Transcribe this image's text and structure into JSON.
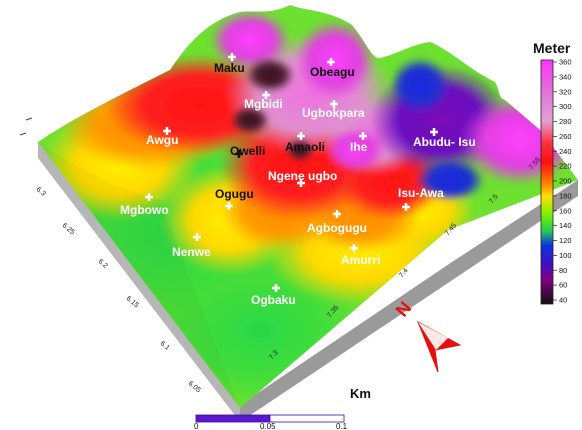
{
  "legend": {
    "title": "Meter",
    "ticks": [
      "360",
      "340",
      "320",
      "300",
      "280",
      "260",
      "240",
      "220",
      "200",
      "180",
      "160",
      "140",
      "120",
      "100",
      "80",
      "60",
      "40"
    ],
    "colors": [
      "#ff30ff",
      "#f050e8",
      "#e070d8",
      "#e2a0d4",
      "#e07090",
      "#ff3040",
      "#ff1010",
      "#ff6a00",
      "#ff9a00",
      "#ffe000",
      "#b0f000",
      "#30e040",
      "#1030e0",
      "#4010c0",
      "#800080",
      "#400040",
      "#101010"
    ]
  },
  "towns": [
    {
      "name": "Maku",
      "color": "black"
    },
    {
      "name": "Obeagu",
      "color": "black"
    },
    {
      "name": "Mgbidi",
      "color": "white"
    },
    {
      "name": "Ugbokpara",
      "color": "white"
    },
    {
      "name": "Awgu",
      "color": "white"
    },
    {
      "name": "Owelli",
      "color": "black"
    },
    {
      "name": "Amaoli",
      "color": "black"
    },
    {
      "name": "Ihe",
      "color": "white"
    },
    {
      "name": "Abudu- Isu",
      "color": "white"
    },
    {
      "name": "Ngene ugbo",
      "color": "white"
    },
    {
      "name": "Ogugu",
      "color": "black"
    },
    {
      "name": "Mgbowo",
      "color": "white"
    },
    {
      "name": "Isu-Awa",
      "color": "white"
    },
    {
      "name": "Agbogugu",
      "color": "white"
    },
    {
      "name": "Nenwe",
      "color": "white"
    },
    {
      "name": "Amurri",
      "color": "white"
    },
    {
      "name": "Ogbaku",
      "color": "white"
    }
  ],
  "axis_left_ticks": [
    "6.3",
    "6.25",
    "6.2",
    "6.15",
    "6.1",
    "6.05"
  ],
  "axis_right_ticks": [
    "7.3",
    "7.35",
    "7.4",
    "7.45",
    "7.5",
    "7.55"
  ],
  "north_label": "N",
  "km_label": "Km",
  "scale": {
    "labels": [
      "0",
      "0.05",
      "0.1"
    ]
  }
}
